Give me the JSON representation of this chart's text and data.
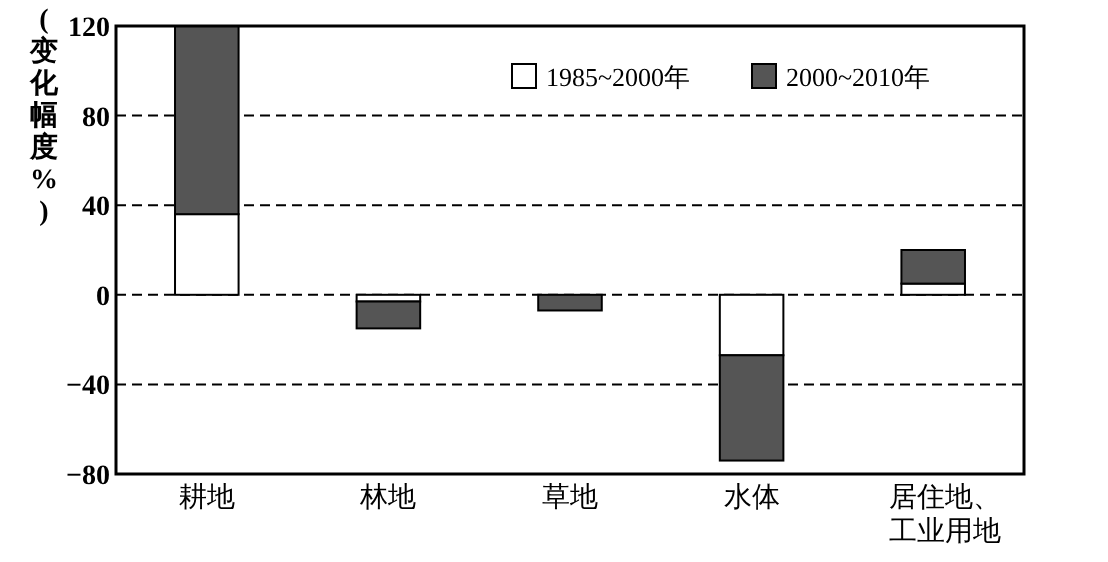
{
  "chart_data": {
    "type": "bar",
    "stacked": true,
    "ylabel": "(变化幅度%)",
    "categories": [
      "耕地",
      "林地",
      "草地",
      "水体",
      "居住地、工业用地"
    ],
    "series": [
      {
        "name": "1985~2000年",
        "color": "#ffffff",
        "values": [
          36,
          -3,
          0,
          -27,
          5
        ]
      },
      {
        "name": "2000~2010年",
        "color": "#555555",
        "values": [
          84,
          -12,
          -7,
          -47,
          15
        ]
      }
    ],
    "ylim": [
      -80,
      120
    ],
    "yticks": [
      {
        "value": -80,
        "label": "−80"
      },
      {
        "value": -40,
        "label": "−40"
      },
      0,
      40,
      80,
      120
    ],
    "grid": "y",
    "legend": "top right"
  }
}
